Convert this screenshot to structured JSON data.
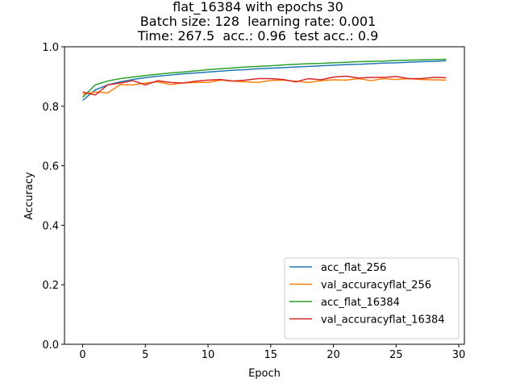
{
  "chart_data": {
    "type": "line",
    "title_lines": [
      "flat_16384 with epochs 30",
      "Batch size: 128  learning rate: 0.001",
      "Time: 267.5  acc.: 0.96  test acc.: 0.9"
    ],
    "xlabel": "Epoch",
    "ylabel": "Accuracy",
    "xlim": [
      -1.45,
      30.45
    ],
    "ylim": [
      0.0,
      1.0
    ],
    "xticks": [
      0,
      5,
      10,
      15,
      20,
      25,
      30
    ],
    "yticks": [
      0.0,
      0.2,
      0.4,
      0.6,
      0.8,
      1.0
    ],
    "ytick_labels": [
      "0.0",
      "0.2",
      "0.4",
      "0.6",
      "0.8",
      "1.0"
    ],
    "grid": false,
    "legend_position": "lower-right",
    "x": [
      0,
      1,
      2,
      3,
      4,
      5,
      6,
      7,
      8,
      9,
      10,
      11,
      12,
      13,
      14,
      15,
      16,
      17,
      18,
      19,
      20,
      21,
      22,
      23,
      24,
      25,
      26,
      27,
      28,
      29
    ],
    "series": [
      {
        "name": "acc_flat_256",
        "color": "#1f77b4",
        "values": [
          0.82,
          0.855,
          0.872,
          0.882,
          0.89,
          0.896,
          0.901,
          0.905,
          0.909,
          0.912,
          0.915,
          0.918,
          0.921,
          0.923,
          0.926,
          0.928,
          0.93,
          0.932,
          0.934,
          0.936,
          0.938,
          0.94,
          0.941,
          0.943,
          0.945,
          0.946,
          0.948,
          0.95,
          0.951,
          0.953
        ]
      },
      {
        "name": "val_accuracyflat_256",
        "color": "#ff7f0e",
        "values": [
          0.84,
          0.848,
          0.845,
          0.873,
          0.872,
          0.878,
          0.882,
          0.873,
          0.878,
          0.88,
          0.88,
          0.888,
          0.884,
          0.882,
          0.88,
          0.887,
          0.888,
          0.884,
          0.88,
          0.886,
          0.889,
          0.888,
          0.893,
          0.886,
          0.893,
          0.89,
          0.893,
          0.89,
          0.889,
          0.888
        ]
      },
      {
        "name": "acc_flat_16384",
        "color": "#2ca02c",
        "values": [
          0.83,
          0.872,
          0.885,
          0.893,
          0.898,
          0.903,
          0.908,
          0.912,
          0.915,
          0.919,
          0.923,
          0.926,
          0.929,
          0.932,
          0.934,
          0.936,
          0.939,
          0.941,
          0.943,
          0.944,
          0.946,
          0.948,
          0.95,
          0.951,
          0.952,
          0.954,
          0.955,
          0.956,
          0.957,
          0.958
        ]
      },
      {
        "name": "val_accuracyflat_16384",
        "color": "#d62728",
        "values": [
          0.848,
          0.838,
          0.872,
          0.878,
          0.886,
          0.872,
          0.886,
          0.88,
          0.878,
          0.884,
          0.888,
          0.89,
          0.885,
          0.888,
          0.893,
          0.893,
          0.89,
          0.882,
          0.893,
          0.889,
          0.898,
          0.901,
          0.895,
          0.897,
          0.897,
          0.9,
          0.893,
          0.893,
          0.897,
          0.896
        ]
      }
    ]
  }
}
